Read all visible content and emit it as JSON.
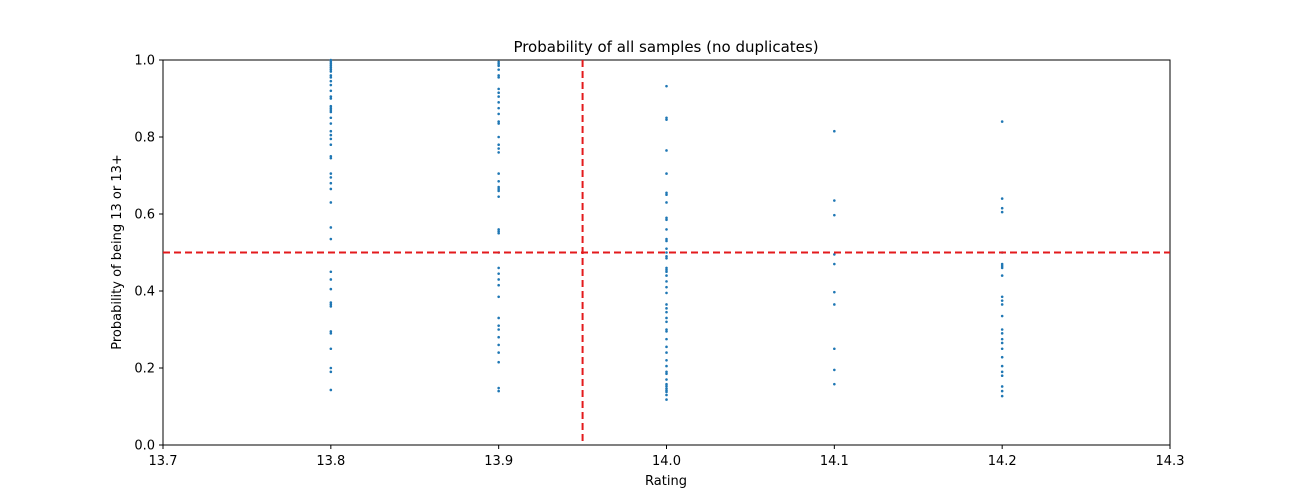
{
  "chart_data": {
    "type": "scatter",
    "title": "Probability of all samples (no duplicates)",
    "xlabel": "Rating",
    "ylabel": "Probability of being 13 or 13+",
    "xlim": [
      13.7,
      14.3
    ],
    "ylim": [
      0.0,
      1.0
    ],
    "xticks": [
      "13.7",
      "13.8",
      "13.9",
      "14.0",
      "14.1",
      "14.2",
      "14.3"
    ],
    "yticks": [
      "0.0",
      "0.2",
      "0.4",
      "0.6",
      "0.8",
      "1.0"
    ],
    "grid": false,
    "point_color": "#1f77b4",
    "reference_line_color": "#e31a1c",
    "reference_lines": {
      "x": 13.95,
      "y": 0.5
    },
    "series": [
      {
        "x": 13.8,
        "y": [
          0.143,
          0.19,
          0.2,
          0.25,
          0.29,
          0.295,
          0.36,
          0.365,
          0.37,
          0.405,
          0.43,
          0.45,
          0.535,
          0.565,
          0.63,
          0.665,
          0.68,
          0.695,
          0.705,
          0.745,
          0.75,
          0.78,
          0.795,
          0.805,
          0.815,
          0.835,
          0.85,
          0.865,
          0.87,
          0.875,
          0.88,
          0.9,
          0.905,
          0.92,
          0.935,
          0.945,
          0.955,
          0.96,
          0.97,
          0.975,
          0.98,
          0.985,
          0.99,
          0.995,
          1.0
        ]
      },
      {
        "x": 13.9,
        "y": [
          0.14,
          0.148,
          0.215,
          0.24,
          0.26,
          0.28,
          0.3,
          0.31,
          0.33,
          0.385,
          0.415,
          0.43,
          0.445,
          0.46,
          0.5,
          0.55,
          0.555,
          0.56,
          0.645,
          0.66,
          0.665,
          0.67,
          0.685,
          0.705,
          0.76,
          0.77,
          0.78,
          0.8,
          0.835,
          0.84,
          0.86,
          0.875,
          0.89,
          0.905,
          0.915,
          0.925,
          0.955,
          0.96,
          0.975,
          0.985,
          0.99,
          0.995
        ]
      },
      {
        "x": 14.0,
        "y": [
          0.118,
          0.13,
          0.138,
          0.142,
          0.147,
          0.153,
          0.158,
          0.17,
          0.185,
          0.19,
          0.205,
          0.22,
          0.24,
          0.255,
          0.275,
          0.295,
          0.3,
          0.32,
          0.33,
          0.345,
          0.355,
          0.365,
          0.395,
          0.41,
          0.425,
          0.44,
          0.45,
          0.455,
          0.46,
          0.485,
          0.49,
          0.5,
          0.51,
          0.53,
          0.535,
          0.56,
          0.585,
          0.59,
          0.63,
          0.65,
          0.655,
          0.705,
          0.765,
          0.845,
          0.85,
          0.932
        ]
      },
      {
        "x": 14.1,
        "y": [
          0.158,
          0.195,
          0.25,
          0.365,
          0.397,
          0.47,
          0.495,
          0.597,
          0.635,
          0.815
        ]
      },
      {
        "x": 14.2,
        "y": [
          0.127,
          0.14,
          0.152,
          0.18,
          0.19,
          0.205,
          0.228,
          0.25,
          0.265,
          0.275,
          0.29,
          0.3,
          0.335,
          0.365,
          0.375,
          0.385,
          0.44,
          0.46,
          0.465,
          0.47,
          0.5,
          0.605,
          0.615,
          0.64,
          0.84
        ]
      }
    ]
  }
}
